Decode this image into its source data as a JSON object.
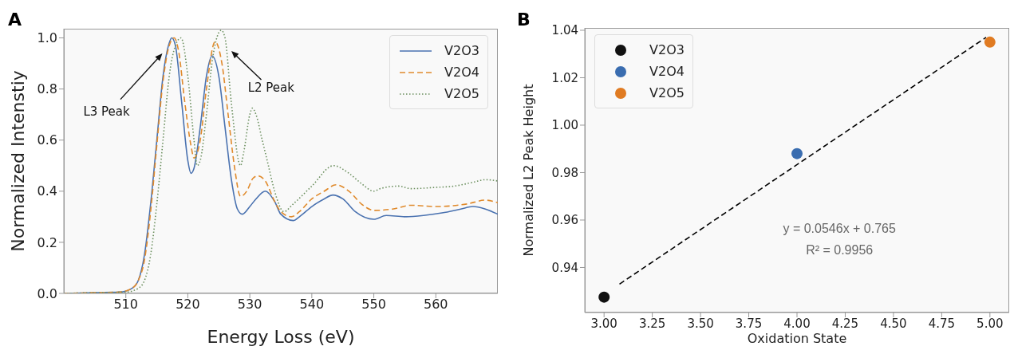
{
  "chart_data": [
    {
      "type": "line",
      "title": "A",
      "xlabel": "Energy Loss (eV)",
      "ylabel": "Normalized Intenstiy",
      "xlim": [
        500,
        570
      ],
      "xticks": [
        510,
        520,
        530,
        540,
        550,
        560
      ],
      "ylim": [
        0,
        1.036
      ],
      "yticks": [
        {
          "value": 0,
          "label": "0.0"
        },
        {
          "value": 0.2,
          "label": "0.2"
        },
        {
          "value": 0.4,
          "label": "0.4"
        },
        {
          "value": 0.6,
          "label": "0.6"
        },
        {
          "value": 0.8,
          "label": "0.8"
        },
        {
          "value": 1,
          "label": "1.0"
        }
      ],
      "legend": "top right",
      "grid": false,
      "annotations": [
        {
          "text": "L3 Peak",
          "x": 515.9,
          "y": 0.94
        },
        {
          "text": "L2 Peak",
          "x": 527,
          "y": 0.95
        }
      ],
      "series": [
        {
          "name": "V2O3",
          "color": "#4a72b0",
          "line_style": "solid",
          "x": [
            500,
            505,
            509,
            511,
            512,
            513,
            514,
            515,
            516,
            517,
            517.4,
            518,
            519,
            520,
            520.5,
            521,
            522,
            523,
            523.9,
            525,
            526,
            527,
            528,
            528.8,
            530,
            531,
            532.5,
            534,
            535,
            537,
            538,
            540,
            542,
            543.4,
            545,
            547,
            550,
            552,
            555,
            558,
            561,
            564,
            566,
            568,
            570
          ],
          "values": [
            0,
            0.003,
            0.005,
            0.02,
            0.05,
            0.15,
            0.35,
            0.6,
            0.85,
            0.98,
            1.0,
            0.97,
            0.75,
            0.52,
            0.47,
            0.49,
            0.65,
            0.85,
            0.93,
            0.85,
            0.65,
            0.45,
            0.33,
            0.31,
            0.34,
            0.37,
            0.4,
            0.36,
            0.31,
            0.285,
            0.3,
            0.34,
            0.37,
            0.385,
            0.37,
            0.32,
            0.29,
            0.305,
            0.3,
            0.305,
            0.315,
            0.33,
            0.34,
            0.33,
            0.31
          ]
        },
        {
          "name": "V2O4",
          "color": "#e08a2c",
          "line_style": "dashed",
          "x": [
            500,
            505,
            509,
            511,
            512,
            513,
            514,
            515,
            516,
            517,
            517.8,
            518.5,
            519.5,
            520.5,
            521,
            522,
            523,
            524.4,
            525.5,
            526.5,
            527.5,
            528.5,
            529.5,
            530.5,
            531.3,
            532.5,
            534,
            535,
            536.7,
            538,
            540,
            542,
            543.9,
            546,
            548,
            550,
            553,
            556,
            560,
            565,
            568,
            570
          ],
          "values": [
            0,
            0.003,
            0.005,
            0.02,
            0.05,
            0.13,
            0.32,
            0.58,
            0.83,
            0.97,
            1.0,
            0.95,
            0.75,
            0.58,
            0.53,
            0.6,
            0.8,
            0.985,
            0.9,
            0.7,
            0.5,
            0.38,
            0.4,
            0.45,
            0.46,
            0.44,
            0.36,
            0.32,
            0.3,
            0.32,
            0.37,
            0.4,
            0.425,
            0.4,
            0.35,
            0.325,
            0.33,
            0.345,
            0.34,
            0.35,
            0.365,
            0.355
          ]
        },
        {
          "name": "V2O5",
          "color": "#6b8f5e",
          "line_style": "dotted",
          "x": [
            500,
            505,
            510,
            512,
            513,
            514,
            515,
            516,
            517,
            518,
            518.9,
            520,
            521,
            521.5,
            522,
            523,
            524,
            525.4,
            526,
            527,
            528.5,
            529,
            530,
            530.4,
            531,
            532,
            533,
            534,
            535.5,
            537,
            540,
            543.5,
            546,
            548,
            550,
            551,
            554,
            556,
            560,
            563,
            566,
            568,
            570
          ],
          "values": [
            0,
            0.003,
            0.005,
            0.02,
            0.05,
            0.15,
            0.35,
            0.6,
            0.85,
            0.97,
            1.0,
            0.85,
            0.6,
            0.5,
            0.52,
            0.7,
            0.92,
            1.03,
            1.0,
            0.75,
            0.5,
            0.55,
            0.7,
            0.725,
            0.7,
            0.6,
            0.5,
            0.4,
            0.32,
            0.35,
            0.42,
            0.5,
            0.47,
            0.43,
            0.4,
            0.41,
            0.42,
            0.41,
            0.415,
            0.42,
            0.435,
            0.445,
            0.44
          ]
        }
      ]
    },
    {
      "type": "scatter",
      "title": "B",
      "xlabel": "Oxidation State",
      "ylabel": "Normalized L2 Peak Height",
      "xlim": [
        2.9,
        5.1
      ],
      "xticks": [
        {
          "value": 3,
          "label": "3.00"
        },
        {
          "value": 3.25,
          "label": "3.25"
        },
        {
          "value": 3.5,
          "label": "3.50"
        },
        {
          "value": 3.75,
          "label": "3.75"
        },
        {
          "value": 4,
          "label": "4.00"
        },
        {
          "value": 4.25,
          "label": "4.25"
        },
        {
          "value": 4.5,
          "label": "4.50"
        },
        {
          "value": 4.75,
          "label": "4.75"
        },
        {
          "value": 5,
          "label": "5.00"
        }
      ],
      "ylim": [
        0.921,
        1.041
      ],
      "yticks": [
        0.94,
        0.96,
        0.98,
        {
          "value": 1,
          "label": "1.00"
        },
        1.02,
        1.04
      ],
      "legend": "top left",
      "grid": false,
      "annotations": [
        "y = 0.0546x + 0.765",
        "R² = 0.9956"
      ],
      "series": [
        {
          "name": "V2O3",
          "color": "#111111",
          "marker": "circle",
          "x": [
            3
          ],
          "values": [
            0.9275
          ]
        },
        {
          "name": "V2O4",
          "color": "#3a6db0",
          "marker": "circle",
          "x": [
            4
          ],
          "values": [
            0.988
          ]
        },
        {
          "name": "V2O5",
          "color": "#e07b22",
          "marker": "circle",
          "x": [
            5
          ],
          "values": [
            1.035
          ]
        },
        {
          "type": "line",
          "color": "#000000",
          "line_style": "dashed",
          "x": [
            3.08,
            4.98
          ],
          "values": [
            0.933,
            1.037
          ]
        }
      ]
    }
  ]
}
